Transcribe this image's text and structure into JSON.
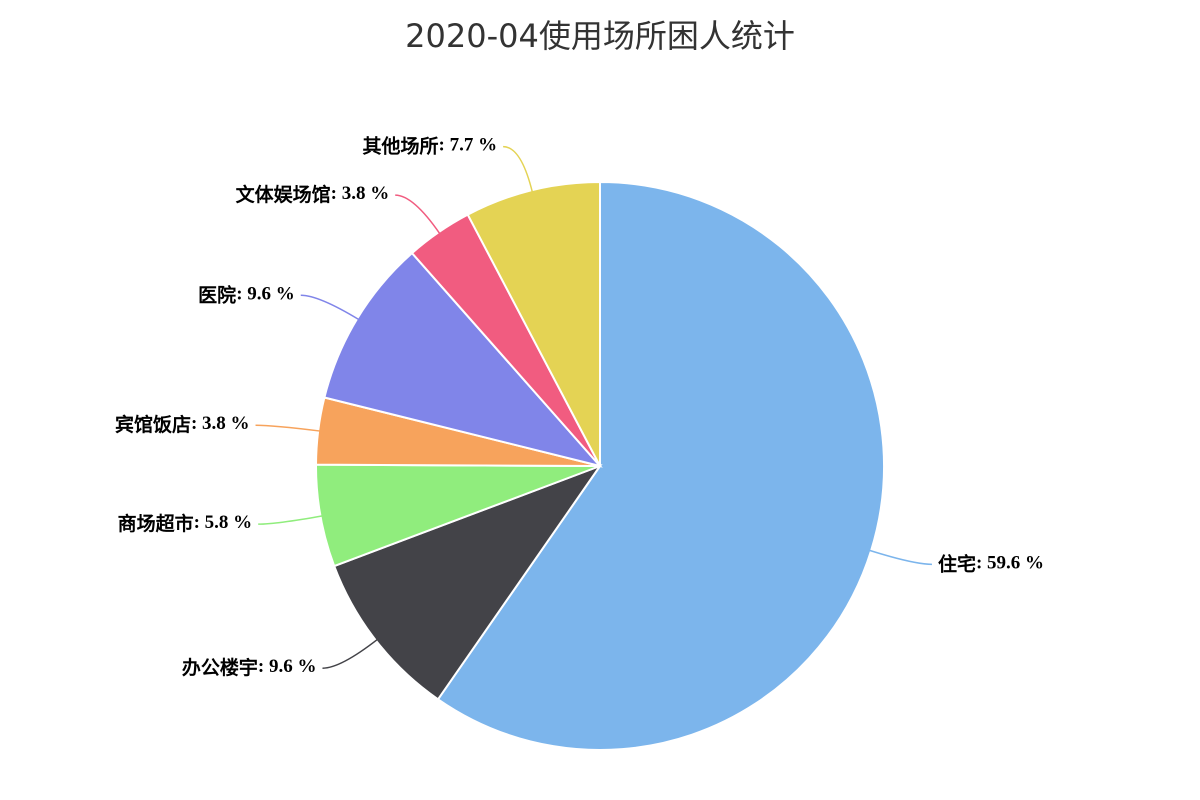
{
  "chart_data": {
    "type": "pie",
    "title": "2020-04使用场所困人统计",
    "categories": [
      "住宅",
      "办公楼宇",
      "商场超市",
      "宾馆饭店",
      "医院",
      "文体娱场馆",
      "其他场所"
    ],
    "values": [
      59.6,
      9.6,
      5.8,
      3.8,
      9.6,
      3.8,
      7.7
    ],
    "value_labels": [
      ": 59.6 %",
      ": 9.6 %",
      ": 5.8 %",
      ": 3.8 %",
      ": 9.6 %",
      ": 3.8 %",
      ": 7.7 %"
    ],
    "colors": [
      "#7cb5ec",
      "#434348",
      "#90ed7d",
      "#f7a35c",
      "#8085e9",
      "#f15c80",
      "#e4d354"
    ]
  }
}
